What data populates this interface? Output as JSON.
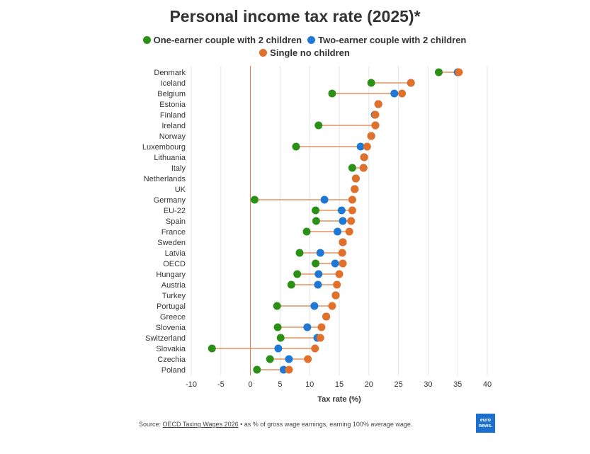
{
  "title": "Personal income tax rate (2025)*",
  "legend": [
    {
      "label": "One-earner couple with 2 children",
      "color": "#2a9116"
    },
    {
      "label": "Two-earner couple with 2 children",
      "color": "#1e78d6"
    },
    {
      "label": "Single no children",
      "color": "#e0702a"
    }
  ],
  "source": {
    "prefix": "Source: ",
    "link_text": "OECD Taxing Wages 2026",
    "suffix": " • as % of gross wage earnings, earning 100% average wage."
  },
  "logo": {
    "line1": "euro",
    "line2": "news."
  },
  "chart_data": {
    "type": "dumbbell",
    "title": "Personal income tax rate (2025)*",
    "xlabel": "Tax rate (%)",
    "xlim": [
      -10,
      40
    ],
    "xticks": [
      -10,
      -5,
      0,
      5,
      10,
      15,
      20,
      25,
      30,
      35,
      40
    ],
    "grid": "vertical",
    "legend_position": "top",
    "colors": {
      "one_earner": "#2a9116",
      "two_earner": "#1e78d6",
      "single": "#e0702a",
      "connector": "#e07a3d",
      "zero_line": "#d9734a"
    },
    "categories": [
      "Denmark",
      "Iceland",
      "Belgium",
      "Estonia",
      "Finland",
      "Ireland",
      "Norway",
      "Luxembourg",
      "Lithuania",
      "Italy",
      "Netherlands",
      "UK",
      "Germany",
      "EU-22",
      "Spain",
      "France",
      "Sweden",
      "Latvia",
      "OECD",
      "Hungary",
      "Austria",
      "Turkey",
      "Portugal",
      "Greece",
      "Slovenia",
      "Switzerland",
      "Slovakia",
      "Czechia",
      "Poland"
    ],
    "series": [
      {
        "name": "One-earner couple with 2 children",
        "key": "one_earner",
        "values": [
          31.8,
          20.4,
          13.8,
          21.6,
          21.0,
          11.5,
          20.4,
          7.7,
          19.2,
          17.2,
          17.8,
          17.6,
          0.7,
          11.0,
          11.1,
          9.5,
          15.6,
          8.3,
          11.0,
          7.9,
          6.9,
          14.4,
          4.5,
          12.8,
          4.6,
          5.1,
          -6.5,
          3.3,
          1.1
        ]
      },
      {
        "name": "Two-earner couple with 2 children",
        "key": "two_earner",
        "values": [
          35.0,
          27.1,
          24.3,
          21.6,
          21.0,
          21.1,
          20.4,
          18.6,
          19.2,
          19.1,
          17.8,
          17.6,
          12.5,
          15.4,
          15.6,
          14.7,
          15.6,
          11.8,
          14.3,
          11.5,
          11.4,
          14.4,
          10.8,
          12.8,
          9.6,
          11.3,
          4.7,
          6.5,
          5.6
        ]
      },
      {
        "name": "Single no children",
        "key": "single",
        "values": [
          35.2,
          27.1,
          25.6,
          21.6,
          21.1,
          21.1,
          20.4,
          19.7,
          19.2,
          19.1,
          17.8,
          17.6,
          17.2,
          17.2,
          17.0,
          16.7,
          15.6,
          15.5,
          15.6,
          15.0,
          14.6,
          14.4,
          13.8,
          12.8,
          12.0,
          11.8,
          10.9,
          9.7,
          6.5
        ]
      }
    ]
  }
}
